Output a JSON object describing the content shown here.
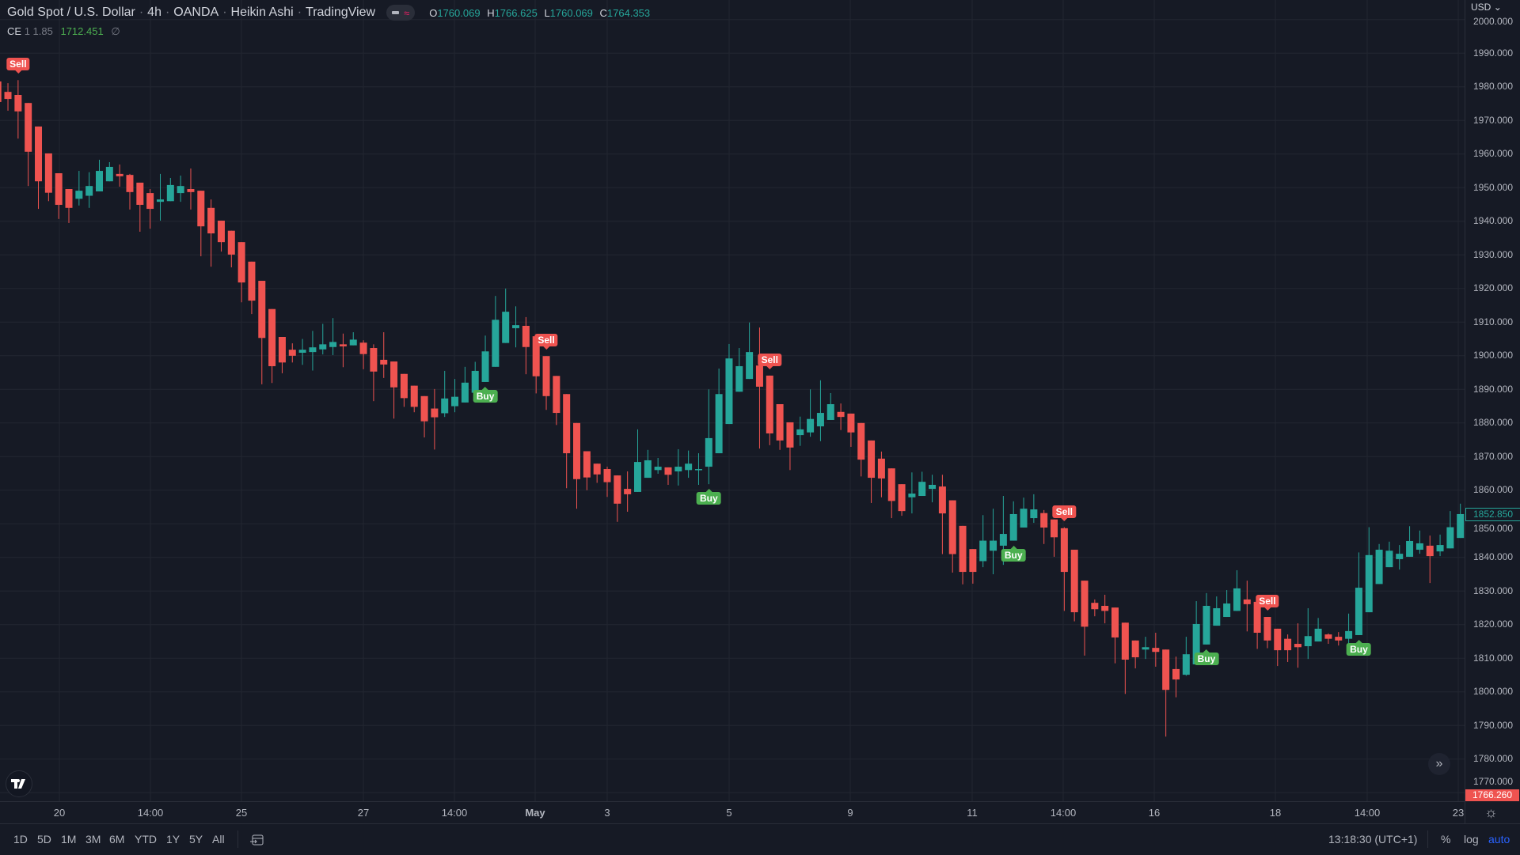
{
  "header": {
    "symbol": "Gold Spot / U.S. Dollar",
    "interval": "4h",
    "exchange": "OANDA",
    "chart_style": "Heikin Ashi",
    "source": "TradingView",
    "ohlc": {
      "o_label": "O",
      "o": "1760.069",
      "h_label": "H",
      "h": "1766.625",
      "l_label": "L",
      "l": "1760.069",
      "c_label": "C",
      "c": "1764.353"
    }
  },
  "indicator": {
    "name": "CE",
    "params": "1 1.85",
    "value": "1712.451",
    "na": "∅"
  },
  "currency": "USD",
  "price_labels": {
    "last": "1852.850",
    "last_color": "#26a69a",
    "bottom": "1766.260",
    "bottom_color": "#ef5350"
  },
  "time_labels": [
    "20",
    "14:00",
    "25",
    "27",
    "14:00",
    "May",
    "3",
    "5",
    "9",
    "11",
    "14:00",
    "16",
    "18",
    "14:00",
    "23"
  ],
  "bottom_bar": {
    "ranges": [
      "1D",
      "5D",
      "1M",
      "3M",
      "6M",
      "YTD",
      "1Y",
      "5Y",
      "All"
    ],
    "clock": "13:18:30 (UTC+1)",
    "percent": "%",
    "log": "log",
    "auto": "auto"
  },
  "icons": {
    "logo": "tradingview-logo",
    "scroll": "double-chevron-right-icon",
    "settings": "gear-icon",
    "date_range": "calendar-goto-icon"
  },
  "colors": {
    "background": "#161a25",
    "up": "#26a69a",
    "down": "#ef5350",
    "buy": "#4caf50",
    "sell": "#ef5350",
    "grid": "#222631"
  },
  "chart_data": {
    "type": "candlestick",
    "style": "Heikin Ashi",
    "ylim": [
      1766,
      2005
    ],
    "yticks": [
      "2000.000",
      "1990.000",
      "1980.000",
      "1970.000",
      "1960.000",
      "1950.000",
      "1940.000",
      "1930.000",
      "1920.000",
      "1910.000",
      "1900.000",
      "1890.000",
      "1880.000",
      "1870.000",
      "1860.000",
      "1850.000",
      "1840.000",
      "1830.000",
      "1820.000",
      "1810.000",
      "1800.000",
      "1790.000",
      "1780.000",
      "1770.000"
    ],
    "grid": true,
    "candles_ohlc": [
      [
        1981.6,
        1984,
        1973,
        1975.5
      ],
      [
        1978.5,
        1981.1,
        1972.9,
        1976.4
      ],
      [
        1977.6,
        1982,
        1964.6,
        1972.7
      ],
      [
        1975.2,
        1975.2,
        1950.5,
        1960.7
      ],
      [
        1968.2,
        1968.2,
        1943.7,
        1951.9
      ],
      [
        1960.2,
        1960.2,
        1946,
        1948.5
      ],
      [
        1954.3,
        1954.3,
        1940.7,
        1944.9
      ],
      [
        1949.6,
        1949.6,
        1939.5,
        1944
      ],
      [
        1946.7,
        1955,
        1944.7,
        1949.1
      ],
      [
        1947.6,
        1954.6,
        1944,
        1950.5
      ],
      [
        1948.9,
        1958.3,
        1948.9,
        1955
      ],
      [
        1951.9,
        1957.6,
        1951.9,
        1956.2
      ],
      [
        1954.1,
        1956.9,
        1950.3,
        1953.4
      ],
      [
        1953.8,
        1954.1,
        1943.5,
        1948.7
      ],
      [
        1951.5,
        1951.5,
        1936.9,
        1944.9
      ],
      [
        1948.4,
        1949.6,
        1937.8,
        1943.7
      ],
      [
        1945.8,
        1954.1,
        1940.2,
        1946.5
      ],
      [
        1946,
        1952.9,
        1946,
        1950.8
      ],
      [
        1948.4,
        1953.6,
        1945.8,
        1950.5
      ],
      [
        1949.6,
        1955.7,
        1943.5,
        1948.7
      ],
      [
        1949.1,
        1949.1,
        1929.6,
        1938.5
      ],
      [
        1944,
        1946.5,
        1926.5,
        1936.4
      ],
      [
        1940.2,
        1940.2,
        1931,
        1933.8
      ],
      [
        1937.2,
        1937.2,
        1926.3,
        1930.1
      ],
      [
        1933.8,
        1933.8,
        1915.9,
        1921.8
      ],
      [
        1928,
        1928,
        1912.4,
        1916.4
      ],
      [
        1922.3,
        1922.3,
        1891.5,
        1905.3
      ],
      [
        1913.9,
        1913.9,
        1891.9,
        1896.9
      ],
      [
        1905.6,
        1905.6,
        1894.8,
        1898
      ],
      [
        1901.8,
        1903.7,
        1898,
        1900
      ],
      [
        1900.9,
        1905,
        1897.3,
        1901.8
      ],
      [
        1901.1,
        1907.4,
        1895.6,
        1902.5
      ],
      [
        1901.9,
        1909.5,
        1900.4,
        1903.4
      ],
      [
        1902.6,
        1911.2,
        1900.2,
        1904.1
      ],
      [
        1903.4,
        1906.6,
        1896.6,
        1902.8
      ],
      [
        1903.1,
        1907,
        1903.1,
        1904.8
      ],
      [
        1903.9,
        1904.6,
        1896,
        1900.5
      ],
      [
        1902.3,
        1903.4,
        1886.5,
        1895.3
      ],
      [
        1898.8,
        1907,
        1893.4,
        1897.4
      ],
      [
        1898.3,
        1898.3,
        1881.3,
        1890.6
      ],
      [
        1894.6,
        1894.6,
        1884.8,
        1887.4
      ],
      [
        1891.1,
        1891.1,
        1883.2,
        1884.8
      ],
      [
        1888,
        1888,
        1875.7,
        1880.5
      ],
      [
        1884.3,
        1890.1,
        1872.1,
        1881.7
      ],
      [
        1882.9,
        1895.5,
        1881.8,
        1887.3
      ],
      [
        1885,
        1893.1,
        1883.2,
        1887.8
      ],
      [
        1886.1,
        1896.7,
        1886.1,
        1892
      ],
      [
        1889,
        1898.2,
        1889,
        1895.5
      ],
      [
        1892.2,
        1906,
        1892.2,
        1901.3
      ],
      [
        1896.7,
        1917.8,
        1896.7,
        1910.7
      ],
      [
        1903.8,
        1920,
        1903.8,
        1913.1
      ],
      [
        1908.2,
        1914.7,
        1902.5,
        1909.1
      ],
      [
        1908.9,
        1911.5,
        1894.5,
        1902.6
      ],
      [
        1905.8,
        1905.8,
        1888.8,
        1893.9
      ],
      [
        1899.9,
        1899.9,
        1883.9,
        1888
      ],
      [
        1894,
        1894,
        1879.4,
        1883
      ],
      [
        1888.6,
        1888.6,
        1860.6,
        1871
      ],
      [
        1880,
        1880,
        1854.5,
        1863.3
      ],
      [
        1871.6,
        1871.6,
        1860,
        1863.8
      ],
      [
        1867.9,
        1867.9,
        1862.2,
        1864.7
      ],
      [
        1866.3,
        1867,
        1858,
        1862.4
      ],
      [
        1864.4,
        1864.4,
        1850.6,
        1856
      ],
      [
        1860.4,
        1865.6,
        1853.6,
        1858.8
      ],
      [
        1859.5,
        1878.1,
        1859.5,
        1868.4
      ],
      [
        1863.7,
        1872,
        1863.7,
        1868.9
      ],
      [
        1866,
        1869.6,
        1864.9,
        1867
      ],
      [
        1866.8,
        1866.8,
        1861.6,
        1864.6
      ],
      [
        1865.6,
        1872.2,
        1861.4,
        1867
      ],
      [
        1866,
        1871.8,
        1863.7,
        1867.9
      ],
      [
        1866.1,
        1871,
        1861.6,
        1866.3
      ],
      [
        1867,
        1890,
        1861.8,
        1875.5
      ],
      [
        1871,
        1896.2,
        1871,
        1888.6
      ],
      [
        1879.7,
        1903.5,
        1879.7,
        1899.2
      ],
      [
        1889.3,
        1902.3,
        1889.3,
        1896.9
      ],
      [
        1893.1,
        1909.9,
        1893.1,
        1901.1
      ],
      [
        1897.1,
        1908.4,
        1872.4,
        1890.8
      ],
      [
        1894.1,
        1894.1,
        1873.4,
        1876.9
      ],
      [
        1885.6,
        1885.6,
        1872,
        1874.8
      ],
      [
        1880.2,
        1880.2,
        1866,
        1872.7
      ],
      [
        1876.4,
        1881.9,
        1873.2,
        1878.1
      ],
      [
        1877.2,
        1890,
        1875.9,
        1881.2
      ],
      [
        1879,
        1892.7,
        1874.6,
        1883
      ],
      [
        1880.9,
        1888.9,
        1880.9,
        1885.6
      ],
      [
        1883.3,
        1885.8,
        1877.9,
        1881.8
      ],
      [
        1882.8,
        1882.8,
        1872.9,
        1877.2
      ],
      [
        1880,
        1880,
        1864.1,
        1869.1
      ],
      [
        1874.8,
        1874.8,
        1856.2,
        1863.7
      ],
      [
        1869.4,
        1871.5,
        1857.9,
        1863.5
      ],
      [
        1866.5,
        1866.5,
        1851.7,
        1856.8
      ],
      [
        1861.8,
        1861.8,
        1852.4,
        1853.8
      ],
      [
        1857.9,
        1865.3,
        1853.1,
        1859
      ],
      [
        1858.3,
        1865.5,
        1858.3,
        1862.5
      ],
      [
        1860.4,
        1864.6,
        1856.4,
        1861.6
      ],
      [
        1861.1,
        1864.6,
        1841,
        1853.1
      ],
      [
        1857,
        1857,
        1835.5,
        1841
      ],
      [
        1849.4,
        1849.4,
        1832,
        1835.7
      ],
      [
        1842.5,
        1842.5,
        1832.2,
        1835.7
      ],
      [
        1838.9,
        1852.6,
        1837.1,
        1845
      ],
      [
        1842,
        1854.5,
        1835,
        1845
      ],
      [
        1843.5,
        1858.3,
        1837.8,
        1847
      ],
      [
        1845,
        1856.7,
        1845,
        1852.9
      ],
      [
        1848.9,
        1857.8,
        1848.9,
        1854.5
      ],
      [
        1851.7,
        1858.8,
        1850.3,
        1854.3
      ],
      [
        1853.2,
        1854.1,
        1844,
        1848.9
      ],
      [
        1851.3,
        1851.3,
        1840.2,
        1846
      ],
      [
        1848.7,
        1849,
        1824.1,
        1835.7
      ],
      [
        1842.3,
        1842.3,
        1821,
        1823.7
      ],
      [
        1833.1,
        1833.1,
        1810.8,
        1819.4
      ],
      [
        1826.5,
        1827.5,
        1822.5,
        1824.6
      ],
      [
        1825.6,
        1828.9,
        1820.4,
        1824.1
      ],
      [
        1825.1,
        1825.1,
        1808.5,
        1816.2
      ],
      [
        1820.6,
        1820.6,
        1799.4,
        1809.6
      ],
      [
        1815.3,
        1815.3,
        1807,
        1810.3
      ],
      [
        1812.6,
        1816.4,
        1809.8,
        1813.3
      ],
      [
        1813.1,
        1817.6,
        1807.5,
        1811.9
      ],
      [
        1812.6,
        1812.6,
        1786.7,
        1800.6
      ],
      [
        1806.8,
        1810.5,
        1798.4,
        1803.7
      ],
      [
        1805.1,
        1816.4,
        1804.8,
        1811.2
      ],
      [
        1808.2,
        1827,
        1808.2,
        1820.2
      ],
      [
        1814.1,
        1829.4,
        1814.1,
        1825.6
      ],
      [
        1819.7,
        1828.4,
        1819.7,
        1824.9
      ],
      [
        1822.3,
        1830.3,
        1822.3,
        1826.3
      ],
      [
        1824.1,
        1836.2,
        1824.1,
        1830.8
      ],
      [
        1827.5,
        1833.1,
        1818,
        1826.1
      ],
      [
        1826.8,
        1826.8,
        1812.8,
        1817.6
      ],
      [
        1822.3,
        1822.3,
        1813,
        1815.3
      ],
      [
        1818.8,
        1818.8,
        1807.7,
        1812.4
      ],
      [
        1815.8,
        1817.1,
        1808.9,
        1812.4
      ],
      [
        1814.3,
        1820.4,
        1807.2,
        1813.3
      ],
      [
        1813.6,
        1824.9,
        1809.8,
        1816.6
      ],
      [
        1815,
        1822,
        1815,
        1818.8
      ],
      [
        1817.1,
        1817.4,
        1814.3,
        1815.8
      ],
      [
        1816.4,
        1817.8,
        1813.8,
        1815.3
      ],
      [
        1815.8,
        1823.3,
        1813.3,
        1818.1
      ],
      [
        1816.9,
        1841.5,
        1816.9,
        1831
      ],
      [
        1823.7,
        1849,
        1823.7,
        1840.7
      ],
      [
        1832.1,
        1844,
        1832.1,
        1842.3
      ],
      [
        1837.1,
        1844.7,
        1837.1,
        1842
      ],
      [
        1839.5,
        1843.7,
        1836.4,
        1841.1
      ],
      [
        1840.2,
        1849.3,
        1840.2,
        1844.9
      ],
      [
        1842.3,
        1848,
        1841.1,
        1844.2
      ],
      [
        1843.5,
        1846.5,
        1832.4,
        1840.4
      ],
      [
        1841.8,
        1846.8,
        1840.4,
        1843.7
      ],
      [
        1842.7,
        1853.8,
        1842.7,
        1849
      ],
      [
        1845.8,
        1856,
        1845.8,
        1852.9
      ]
    ],
    "signals": [
      {
        "bar": 2,
        "type": "sell",
        "label": "Sell"
      },
      {
        "bar": 48,
        "type": "buy",
        "label": "Buy"
      },
      {
        "bar": 54,
        "type": "sell",
        "label": "Sell"
      },
      {
        "bar": 70,
        "type": "buy",
        "label": "Buy"
      },
      {
        "bar": 76,
        "type": "sell",
        "label": "Sell"
      },
      {
        "bar": 100,
        "type": "buy",
        "label": "Buy"
      },
      {
        "bar": 105,
        "type": "sell",
        "label": "Sell"
      },
      {
        "bar": 119,
        "type": "buy",
        "label": "Buy"
      },
      {
        "bar": 125,
        "type": "sell",
        "label": "Sell"
      },
      {
        "bar": 134,
        "type": "buy",
        "label": "Buy"
      }
    ]
  }
}
